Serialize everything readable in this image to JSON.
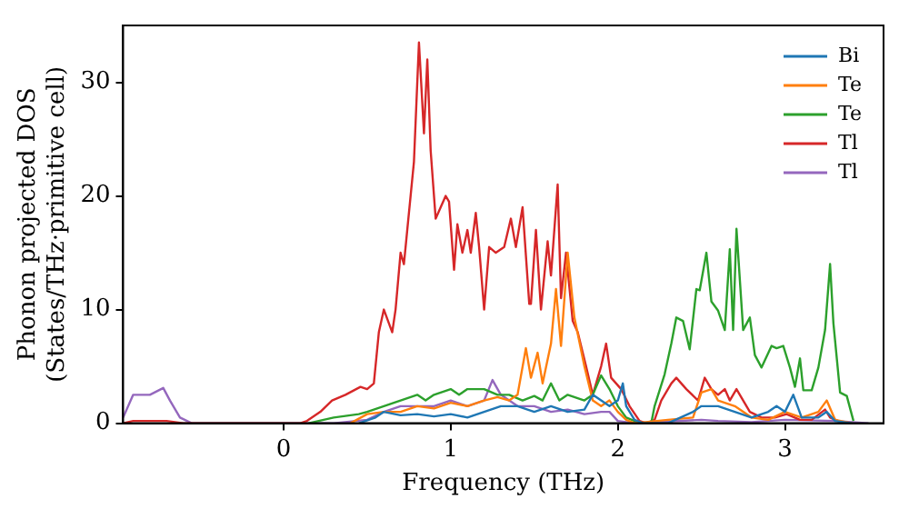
{
  "chart_data": {
    "type": "line",
    "xlabel": "Frequency (THz)",
    "ylabel": "Phonon projected DOS\n(States/THz·primitive cell)",
    "xlim": [
      -0.96,
      3.59
    ],
    "ylim": [
      0,
      35
    ],
    "xticks": [
      0,
      1,
      2,
      3
    ],
    "yticks": [
      0,
      10,
      20,
      30
    ],
    "grid": false,
    "legend": "top right",
    "marker": "none",
    "line_style": "solid",
    "series": [
      {
        "name": "Bi",
        "color": "#1f77b4",
        "x": [
          0.45,
          0.55,
          0.6,
          0.7,
          0.8,
          0.9,
          1.0,
          1.1,
          1.2,
          1.3,
          1.4,
          1.5,
          1.6,
          1.7,
          1.8,
          1.85,
          1.9,
          1.95,
          2.0,
          2.03,
          2.05,
          2.1,
          2.15,
          2.3,
          2.45,
          2.5,
          2.6,
          2.7,
          2.8,
          2.9,
          2.95,
          3.0,
          3.05,
          3.1,
          3.2,
          3.25,
          3.3,
          3.4
        ],
        "values": [
          0,
          0.5,
          1,
          0.7,
          0.8,
          0.6,
          0.8,
          0.5,
          1,
          1.5,
          1.5,
          1,
          1.5,
          1,
          1.2,
          2.5,
          2,
          1.5,
          2,
          3.5,
          1.5,
          0.3,
          0,
          0,
          1,
          1.5,
          1.5,
          1,
          0.5,
          1,
          1.5,
          1,
          2.5,
          0.5,
          0.5,
          1,
          0.2,
          0
        ]
      },
      {
        "name": "Te",
        "color": "#ff7f0e",
        "x": [
          0.4,
          0.5,
          0.6,
          0.7,
          0.8,
          0.9,
          1.0,
          1.1,
          1.2,
          1.28,
          1.35,
          1.4,
          1.45,
          1.48,
          1.52,
          1.55,
          1.6,
          1.63,
          1.66,
          1.7,
          1.74,
          1.8,
          1.85,
          1.9,
          1.95,
          2.0,
          2.05,
          2.1,
          2.3,
          2.45,
          2.5,
          2.56,
          2.6,
          2.7,
          2.8,
          2.9,
          3.0,
          3.1,
          3.2,
          3.25,
          3.3,
          3.4
        ],
        "values": [
          0,
          0.8,
          1,
          1,
          1.5,
          1.3,
          1.8,
          1.5,
          2,
          2.3,
          2,
          2.5,
          6.6,
          4,
          6.2,
          3.5,
          7,
          11.8,
          6.8,
          15,
          9.3,
          5,
          2,
          1.5,
          2,
          1,
          0.3,
          0,
          0.3,
          0.5,
          2.7,
          3,
          2,
          1.5,
          0.5,
          0.3,
          1,
          0.5,
          1,
          2,
          0.3,
          0
        ]
      },
      {
        "name": "Te",
        "color": "#2ca02c",
        "x": [
          0.15,
          0.3,
          0.45,
          0.5,
          0.6,
          0.7,
          0.8,
          0.85,
          0.9,
          1.0,
          1.05,
          1.1,
          1.2,
          1.28,
          1.35,
          1.43,
          1.5,
          1.55,
          1.6,
          1.65,
          1.7,
          1.8,
          1.85,
          1.9,
          1.95,
          2.0,
          2.05,
          2.1,
          2.15,
          2.2,
          2.22,
          2.28,
          2.32,
          2.35,
          2.39,
          2.43,
          2.47,
          2.49,
          2.53,
          2.56,
          2.6,
          2.64,
          2.67,
          2.69,
          2.71,
          2.75,
          2.79,
          2.82,
          2.86,
          2.92,
          2.95,
          2.99,
          3.03,
          3.06,
          3.09,
          3.11,
          3.16,
          3.2,
          3.24,
          3.27,
          3.29,
          3.33,
          3.37,
          3.41
        ],
        "values": [
          0,
          0.5,
          0.8,
          1,
          1.5,
          2,
          2.5,
          2,
          2.5,
          3,
          2.5,
          3,
          3,
          2.5,
          2.5,
          2,
          2.4,
          2,
          3.5,
          2,
          2.5,
          2,
          2.5,
          4.2,
          3,
          1.5,
          0.5,
          0.2,
          0,
          0,
          1.5,
          4.3,
          7,
          9.3,
          9,
          6.5,
          11.8,
          11.7,
          15,
          10.7,
          9.9,
          8.2,
          15.3,
          8.2,
          17.1,
          8.2,
          9.3,
          6,
          4.9,
          6.8,
          6.6,
          6.8,
          4.9,
          3.2,
          5.7,
          2.9,
          2.9,
          4.9,
          8.2,
          14,
          8.8,
          2.7,
          2.4,
          0.2
        ]
      },
      {
        "name": "Tl",
        "color": "#d62728",
        "x": [
          -0.96,
          -0.9,
          -0.7,
          -0.6,
          0.1,
          0.14,
          0.22,
          0.29,
          0.37,
          0.46,
          0.5,
          0.54,
          0.57,
          0.6,
          0.65,
          0.67,
          0.7,
          0.72,
          0.76,
          0.78,
          0.81,
          0.84,
          0.86,
          0.88,
          0.91,
          0.97,
          0.99,
          1.02,
          1.04,
          1.07,
          1.1,
          1.12,
          1.15,
          1.17,
          1.2,
          1.23,
          1.27,
          1.32,
          1.36,
          1.39,
          1.43,
          1.47,
          1.48,
          1.51,
          1.54,
          1.58,
          1.6,
          1.64,
          1.66,
          1.69,
          1.73,
          1.76,
          1.81,
          1.85,
          1.9,
          1.93,
          1.96,
          2.02,
          2.07,
          2.13,
          2.17,
          2.22,
          2.26,
          2.32,
          2.35,
          2.41,
          2.48,
          2.52,
          2.56,
          2.6,
          2.64,
          2.67,
          2.71,
          2.75,
          2.79,
          2.86,
          2.94,
          3.01,
          3.09,
          3.16,
          3.24,
          3.27,
          3.35
        ],
        "values": [
          0,
          0.2,
          0.2,
          0,
          0,
          0.2,
          1,
          2,
          2.5,
          3.2,
          3,
          3.5,
          8,
          10,
          8,
          10,
          15,
          14,
          20,
          23,
          33.5,
          25.5,
          32,
          24,
          18,
          20,
          19.5,
          13.5,
          17.5,
          15,
          17,
          15,
          18.5,
          15.5,
          10,
          15.5,
          15,
          15.5,
          18,
          15.5,
          19,
          10.5,
          10.5,
          17,
          10,
          16,
          13,
          21,
          11,
          15,
          9,
          8,
          5,
          2.5,
          5,
          7,
          4,
          3,
          1.5,
          0.2,
          0,
          0.3,
          2,
          3.5,
          4,
          3,
          2,
          4,
          3,
          2.5,
          3,
          2,
          3,
          2,
          1,
          0.5,
          0.5,
          0.8,
          0.3,
          0.3,
          1.2,
          0.5,
          0
        ]
      },
      {
        "name": "Tl",
        "color": "#9467bd",
        "x": [
          -0.96,
          -0.9,
          -0.8,
          -0.72,
          -0.68,
          -0.62,
          -0.55,
          0.3,
          0.5,
          0.6,
          0.7,
          0.8,
          0.9,
          1.0,
          1.1,
          1.2,
          1.25,
          1.3,
          1.35,
          1.4,
          1.5,
          1.6,
          1.7,
          1.8,
          1.9,
          1.95,
          2.0,
          2.1,
          2.5,
          2.6,
          2.8,
          3.0,
          3.3,
          3.5
        ],
        "values": [
          0.5,
          2.5,
          2.5,
          3.1,
          2,
          0.5,
          0,
          0,
          0.3,
          1,
          1.5,
          1.5,
          1.5,
          2,
          1.5,
          2,
          3.8,
          2.5,
          2,
          1.5,
          1.5,
          1,
          1.2,
          0.8,
          1,
          1,
          0.2,
          0,
          0.3,
          0.2,
          0.1,
          0.3,
          0.2,
          0
        ]
      }
    ]
  }
}
